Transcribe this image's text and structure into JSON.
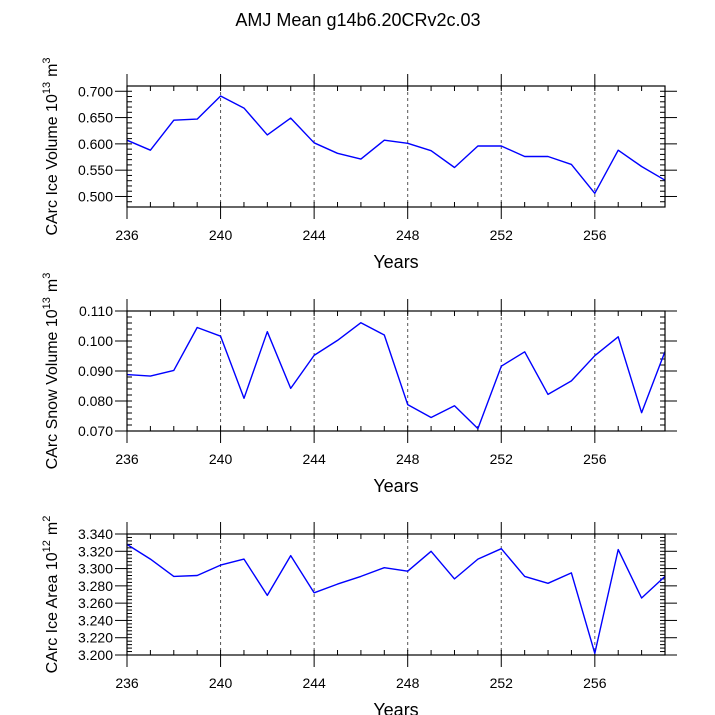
{
  "figure": {
    "title": "AMJ Mean g14b6.20CRv2c.03"
  },
  "chart_data": [
    {
      "type": "line",
      "id": "ice-volume",
      "ylabel": "CArc Ice Volume 10",
      "ylabel_exp": "13",
      "ylabel_unit": "m",
      "ylabel_unit_exp": "3",
      "xlabel": "Years",
      "xlim": [
        236,
        259
      ],
      "ylim": [
        0.48,
        0.71
      ],
      "xticks": [
        236,
        240,
        244,
        248,
        252,
        256
      ],
      "xtick_labels": [
        "236",
        "240",
        "244",
        "248",
        "252",
        "256"
      ],
      "yticks": [
        0.5,
        0.55,
        0.6,
        0.65,
        0.7
      ],
      "ytick_labels": [
        "0.500",
        "0.550",
        "0.600",
        "0.650",
        "0.700"
      ],
      "yminor": 0.01,
      "grid": "dashed vertical at major x ticks",
      "series": [
        {
          "name": "CArc Ice Volume",
          "color": "#0000ff",
          "x": [
            236,
            237,
            238,
            239,
            240,
            241,
            242,
            243,
            244,
            245,
            246,
            247,
            248,
            249,
            250,
            251,
            252,
            253,
            254,
            255,
            256,
            257,
            258,
            259
          ],
          "values": [
            0.607,
            0.588,
            0.645,
            0.647,
            0.691,
            0.668,
            0.617,
            0.649,
            0.602,
            0.582,
            0.571,
            0.607,
            0.601,
            0.587,
            0.555,
            0.596,
            0.596,
            0.576,
            0.576,
            0.561,
            0.506,
            0.588,
            0.557,
            0.531
          ]
        }
      ]
    },
    {
      "type": "line",
      "id": "snow-volume",
      "ylabel": "CArc Snow Volume 10",
      "ylabel_exp": "13",
      "ylabel_unit": "m",
      "ylabel_unit_exp": "3",
      "xlabel": "Years",
      "xlim": [
        236,
        259
      ],
      "ylim": [
        0.07,
        0.11
      ],
      "xticks": [
        236,
        240,
        244,
        248,
        252,
        256
      ],
      "xtick_labels": [
        "236",
        "240",
        "244",
        "248",
        "252",
        "256"
      ],
      "yticks": [
        0.07,
        0.08,
        0.09,
        0.1,
        0.11
      ],
      "ytick_labels": [
        "0.070",
        "0.080",
        "0.090",
        "0.100",
        "0.110"
      ],
      "yminor": 0.002,
      "grid": "dashed vertical at major x ticks",
      "series": [
        {
          "name": "CArc Snow Volume",
          "color": "#0000ff",
          "x": [
            236,
            237,
            238,
            239,
            240,
            241,
            242,
            243,
            244,
            245,
            246,
            247,
            248,
            249,
            250,
            251,
            252,
            253,
            254,
            255,
            256,
            257,
            258,
            259
          ],
          "values": [
            0.0888,
            0.0883,
            0.0902,
            0.1045,
            0.1016,
            0.0809,
            0.1031,
            0.0842,
            0.0952,
            0.1002,
            0.1061,
            0.102,
            0.0788,
            0.0745,
            0.0784,
            0.0708,
            0.0916,
            0.0964,
            0.0822,
            0.0867,
            0.0951,
            0.1014,
            0.0761,
            0.0965
          ]
        }
      ]
    },
    {
      "type": "line",
      "id": "ice-area",
      "ylabel": "CArc Ice Area 10",
      "ylabel_exp": "12",
      "ylabel_unit": "m",
      "ylabel_unit_exp": "2",
      "xlabel": "Years",
      "xlim": [
        236,
        259
      ],
      "ylim": [
        3.2,
        3.34
      ],
      "xticks": [
        236,
        240,
        244,
        248,
        252,
        256
      ],
      "xtick_labels": [
        "236",
        "240",
        "244",
        "248",
        "252",
        "256"
      ],
      "yticks": [
        3.2,
        3.22,
        3.24,
        3.26,
        3.28,
        3.3,
        3.32,
        3.34
      ],
      "ytick_labels": [
        "3.200",
        "3.220",
        "3.240",
        "3.260",
        "3.280",
        "3.300",
        "3.320",
        "3.340"
      ],
      "yminor": 0.004,
      "grid": "dashed vertical at major x ticks",
      "series": [
        {
          "name": "CArc Ice Area",
          "color": "#0000ff",
          "x": [
            236,
            237,
            238,
            239,
            240,
            241,
            242,
            243,
            244,
            245,
            246,
            247,
            248,
            249,
            250,
            251,
            252,
            253,
            254,
            255,
            256,
            257,
            258,
            259
          ],
          "values": [
            3.328,
            3.311,
            3.291,
            3.292,
            3.304,
            3.311,
            3.269,
            3.315,
            3.272,
            3.282,
            3.291,
            3.301,
            3.297,
            3.32,
            3.288,
            3.311,
            3.323,
            3.291,
            3.283,
            3.295,
            3.202,
            3.322,
            3.266,
            3.291
          ]
        }
      ]
    }
  ]
}
